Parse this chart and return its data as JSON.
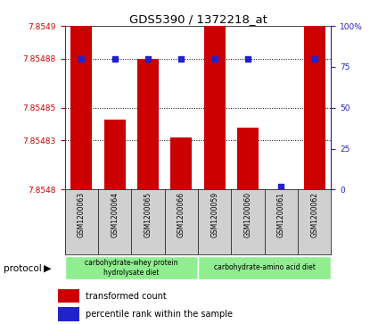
{
  "title": "GDS5390 / 1372218_at",
  "samples": [
    "GSM1200063",
    "GSM1200064",
    "GSM1200065",
    "GSM1200066",
    "GSM1200059",
    "GSM1200060",
    "GSM1200061",
    "GSM1200062"
  ],
  "transformed_counts": [
    7.8549,
    7.854843,
    7.85488,
    7.854832,
    7.85492,
    7.854838,
    7.8548,
    7.8549
  ],
  "percentile_ranks": [
    80,
    80,
    80,
    80,
    80,
    80,
    2,
    80
  ],
  "ylim_left": [
    7.8548,
    7.8549
  ],
  "ylim_right": [
    0,
    100
  ],
  "yticks_left": [
    7.8548,
    7.85483,
    7.85485,
    7.85488,
    7.8549
  ],
  "yticks_right": [
    0,
    25,
    50,
    75,
    100
  ],
  "bar_color": "#cc0000",
  "dot_color": "#2222cc",
  "left_axis_color": "#cc0000",
  "right_axis_color": "#2222bb",
  "group1_label": "carbohydrate-whey protein\nhydrolysate diet",
  "group2_label": "carbohydrate-amino acid diet",
  "group_color": "#90ee90",
  "legend_label_bar": "transformed count",
  "legend_label_dot": "percentile rank within the sample",
  "protocol_label": "protocol"
}
